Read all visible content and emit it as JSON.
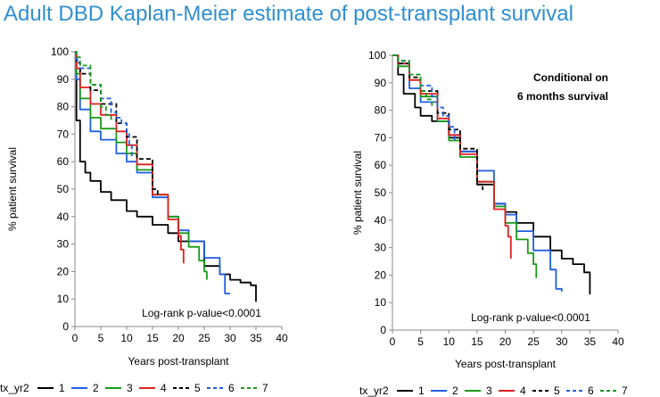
{
  "title": "Adult DBD Kaplan-Meier estimate of post-transplant survival",
  "legend": {
    "title": "tx_yr2",
    "entries": [
      {
        "label": "1",
        "color": "#000000",
        "dash": "solid"
      },
      {
        "label": "2",
        "color": "#1f5fe0",
        "dash": "solid"
      },
      {
        "label": "3",
        "color": "#1a9a1a",
        "dash": "solid"
      },
      {
        "label": "4",
        "color": "#e02020",
        "dash": "solid"
      },
      {
        "label": "5",
        "color": "#000000",
        "dash": "dashed"
      },
      {
        "label": "6",
        "color": "#1f5fe0",
        "dash": "dashed"
      },
      {
        "label": "7",
        "color": "#1a9a1a",
        "dash": "dashed"
      }
    ]
  },
  "chart_data": [
    {
      "type": "line",
      "subtitle": "",
      "xlabel": "Years post-transplant",
      "ylabel": "% patient survival",
      "xlim": [
        0,
        40
      ],
      "ylim": [
        0,
        100
      ],
      "xticks": [
        0,
        5,
        10,
        15,
        20,
        25,
        30,
        35,
        40
      ],
      "yticks": [
        0,
        10,
        20,
        30,
        40,
        50,
        60,
        70,
        80,
        90,
        100
      ],
      "annotation": "Log-rank p-value<0.0001",
      "series": [
        {
          "name": "1",
          "x": [
            0,
            0.3,
            1,
            2,
            3,
            5,
            7,
            10,
            12,
            15,
            18,
            20,
            25,
            28,
            30,
            32,
            34,
            35
          ],
          "y": [
            100,
            75,
            60,
            56,
            53,
            49,
            46,
            42,
            40,
            37,
            34,
            31,
            22,
            19,
            17,
            16,
            15,
            9
          ]
        },
        {
          "name": "2",
          "x": [
            0,
            0.3,
            1,
            3,
            5,
            8,
            10,
            12,
            15,
            18,
            20,
            22,
            25,
            28,
            29,
            30
          ],
          "y": [
            100,
            90,
            79,
            71,
            68,
            63,
            60,
            56,
            47,
            40,
            35,
            31,
            25,
            19,
            12,
            12
          ]
        },
        {
          "name": "3",
          "x": [
            0,
            0.3,
            1,
            3,
            5,
            8,
            10,
            12,
            15,
            18,
            20,
            22,
            24,
            25,
            25.5
          ],
          "y": [
            100,
            92,
            83,
            76,
            72,
            67,
            63,
            57,
            48,
            40,
            34,
            29,
            24,
            20,
            17
          ]
        },
        {
          "name": "4",
          "x": [
            0,
            0.3,
            1,
            3,
            5,
            8,
            10,
            12,
            15,
            18,
            20,
            20.5,
            21
          ],
          "y": [
            100,
            94,
            87,
            81,
            77,
            71,
            66,
            59,
            48,
            39,
            33,
            28,
            23
          ]
        },
        {
          "name": "5",
          "x": [
            0,
            0.3,
            1,
            3,
            5,
            8,
            10,
            12,
            15,
            16
          ],
          "y": [
            100,
            96,
            92,
            86,
            81,
            74,
            69,
            61,
            50,
            48
          ]
        },
        {
          "name": "6",
          "x": [
            0,
            0.3,
            1,
            3,
            5,
            7,
            8,
            9,
            10,
            10.5,
            11
          ],
          "y": [
            100,
            97,
            94,
            88,
            83,
            78,
            76,
            74,
            70,
            66,
            62
          ]
        },
        {
          "name": "7",
          "x": [
            0,
            0.3,
            1,
            3,
            5,
            6,
            7
          ],
          "y": [
            100,
            98,
            95,
            88,
            80,
            77,
            75
          ]
        }
      ]
    },
    {
      "type": "line",
      "subtitle": "Conditional on 6 months survival",
      "subtitle_lines": [
        "Conditional on",
        "6 months survival"
      ],
      "xlabel": "Years post-transplant",
      "ylabel": "% patient survival",
      "xlim": [
        0,
        40
      ],
      "ylim": [
        0,
        100
      ],
      "xticks": [
        0,
        5,
        10,
        15,
        20,
        25,
        30,
        35,
        40
      ],
      "yticks": [
        0,
        10,
        20,
        30,
        40,
        50,
        60,
        70,
        80,
        90,
        100
      ],
      "annotation": "Log-rank p-value<0.0001",
      "series": [
        {
          "name": "1",
          "x": [
            0,
            1,
            2,
            4,
            5,
            7,
            10,
            12,
            15,
            18,
            20,
            22,
            25,
            28,
            30,
            32,
            34,
            35
          ],
          "y": [
            100,
            93,
            86,
            81,
            78,
            76,
            70,
            65,
            53,
            46,
            43,
            39,
            34,
            29,
            26,
            24,
            21,
            13
          ]
        },
        {
          "name": "2",
          "x": [
            0,
            1,
            3,
            5,
            8,
            10,
            12,
            15,
            18,
            20,
            22,
            25,
            28,
            29,
            30
          ],
          "y": [
            100,
            97,
            88,
            83,
            76,
            71,
            65,
            58,
            46,
            42,
            36,
            29,
            22,
            15,
            14
          ]
        },
        {
          "name": "3",
          "x": [
            0,
            1,
            3,
            5,
            8,
            10,
            12,
            15,
            18,
            20,
            22,
            24,
            25,
            25.5
          ],
          "y": [
            100,
            96,
            91,
            85,
            76,
            69,
            63,
            54,
            45,
            39,
            33,
            28,
            24,
            19
          ]
        },
        {
          "name": "4",
          "x": [
            0,
            1,
            3,
            5,
            8,
            10,
            12,
            15,
            18,
            20,
            20.5,
            21
          ],
          "y": [
            100,
            97,
            91,
            86,
            77,
            71,
            64,
            54,
            44,
            38,
            34,
            26
          ]
        },
        {
          "name": "5",
          "x": [
            0,
            1,
            3,
            5,
            8,
            10,
            12,
            15,
            16
          ],
          "y": [
            100,
            97,
            92,
            87,
            79,
            73,
            66,
            53,
            51
          ]
        },
        {
          "name": "6",
          "x": [
            0,
            1,
            3,
            5,
            7,
            8,
            9,
            10,
            11
          ],
          "y": [
            100,
            98,
            93,
            89,
            85,
            81,
            78,
            74,
            69
          ]
        },
        {
          "name": "7",
          "x": [
            0,
            1,
            3,
            5,
            6,
            7
          ],
          "y": [
            100,
            98,
            93,
            87,
            84,
            81
          ]
        }
      ]
    }
  ]
}
